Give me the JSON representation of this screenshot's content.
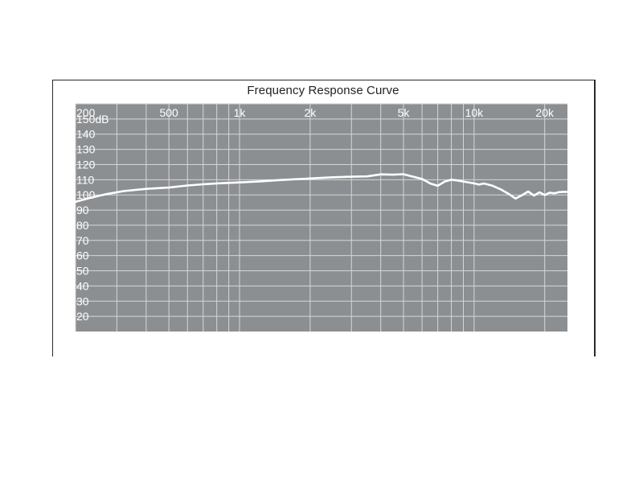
{
  "chart_data": {
    "type": "line",
    "title": "Frequency Response Curve",
    "xlabel": "",
    "ylabel": "",
    "x_scale": "log",
    "xlim": [
      200,
      25000
    ],
    "ylim": [
      10,
      160
    ],
    "x_ticks": [
      {
        "value": 200,
        "label": "200"
      },
      {
        "value": 500,
        "label": "500"
      },
      {
        "value": 1000,
        "label": "1k"
      },
      {
        "value": 2000,
        "label": "2k"
      },
      {
        "value": 5000,
        "label": "5k"
      },
      {
        "value": 10000,
        "label": "10k"
      },
      {
        "value": 20000,
        "label": "20k"
      }
    ],
    "y_ticks": [
      {
        "value": 150,
        "label": "150dB"
      },
      {
        "value": 140,
        "label": "140"
      },
      {
        "value": 130,
        "label": "130"
      },
      {
        "value": 120,
        "label": "120"
      },
      {
        "value": 110,
        "label": "110"
      },
      {
        "value": 100,
        "label": "100"
      },
      {
        "value": 90,
        "label": "90"
      },
      {
        "value": 80,
        "label": "80"
      },
      {
        "value": 70,
        "label": "70"
      },
      {
        "value": 60,
        "label": "60"
      },
      {
        "value": 50,
        "label": "50"
      },
      {
        "value": 40,
        "label": "40"
      },
      {
        "value": 30,
        "label": "30"
      },
      {
        "value": 20,
        "label": "20"
      }
    ],
    "grid": true,
    "colors": {
      "plot_background": "#8c8f92",
      "grid": "#d6d6d6",
      "line": "#ffffff",
      "labels": "#ffffff"
    },
    "series": [
      {
        "x": [
          200,
          230,
          270,
          320,
          400,
          500,
          600,
          700,
          800,
          1000,
          1200,
          1500,
          2000,
          2500,
          3000,
          3500,
          4000,
          4500,
          5000,
          5500,
          6000,
          6500,
          7000,
          7500,
          8000,
          8500,
          9000,
          10000,
          10500,
          11000,
          12000,
          13000,
          14000,
          15000,
          16000,
          17000,
          18000,
          19000,
          20000,
          21000,
          22000,
          23000,
          24000,
          25000
        ],
        "y": [
          95.5,
          98,
          100.5,
          102.5,
          104,
          104.8,
          106.2,
          107,
          107.6,
          108.2,
          108.8,
          109.8,
          110.8,
          111.6,
          112,
          112.2,
          113.5,
          113.3,
          113.6,
          112,
          110.5,
          107.5,
          106,
          108.8,
          110,
          109.5,
          108.8,
          107.6,
          106.8,
          107.5,
          106,
          103.6,
          100.8,
          97.6,
          99.8,
          102.2,
          99.6,
          101.7,
          99.9,
          101.5,
          101,
          101.8,
          102,
          102
        ]
      }
    ]
  }
}
